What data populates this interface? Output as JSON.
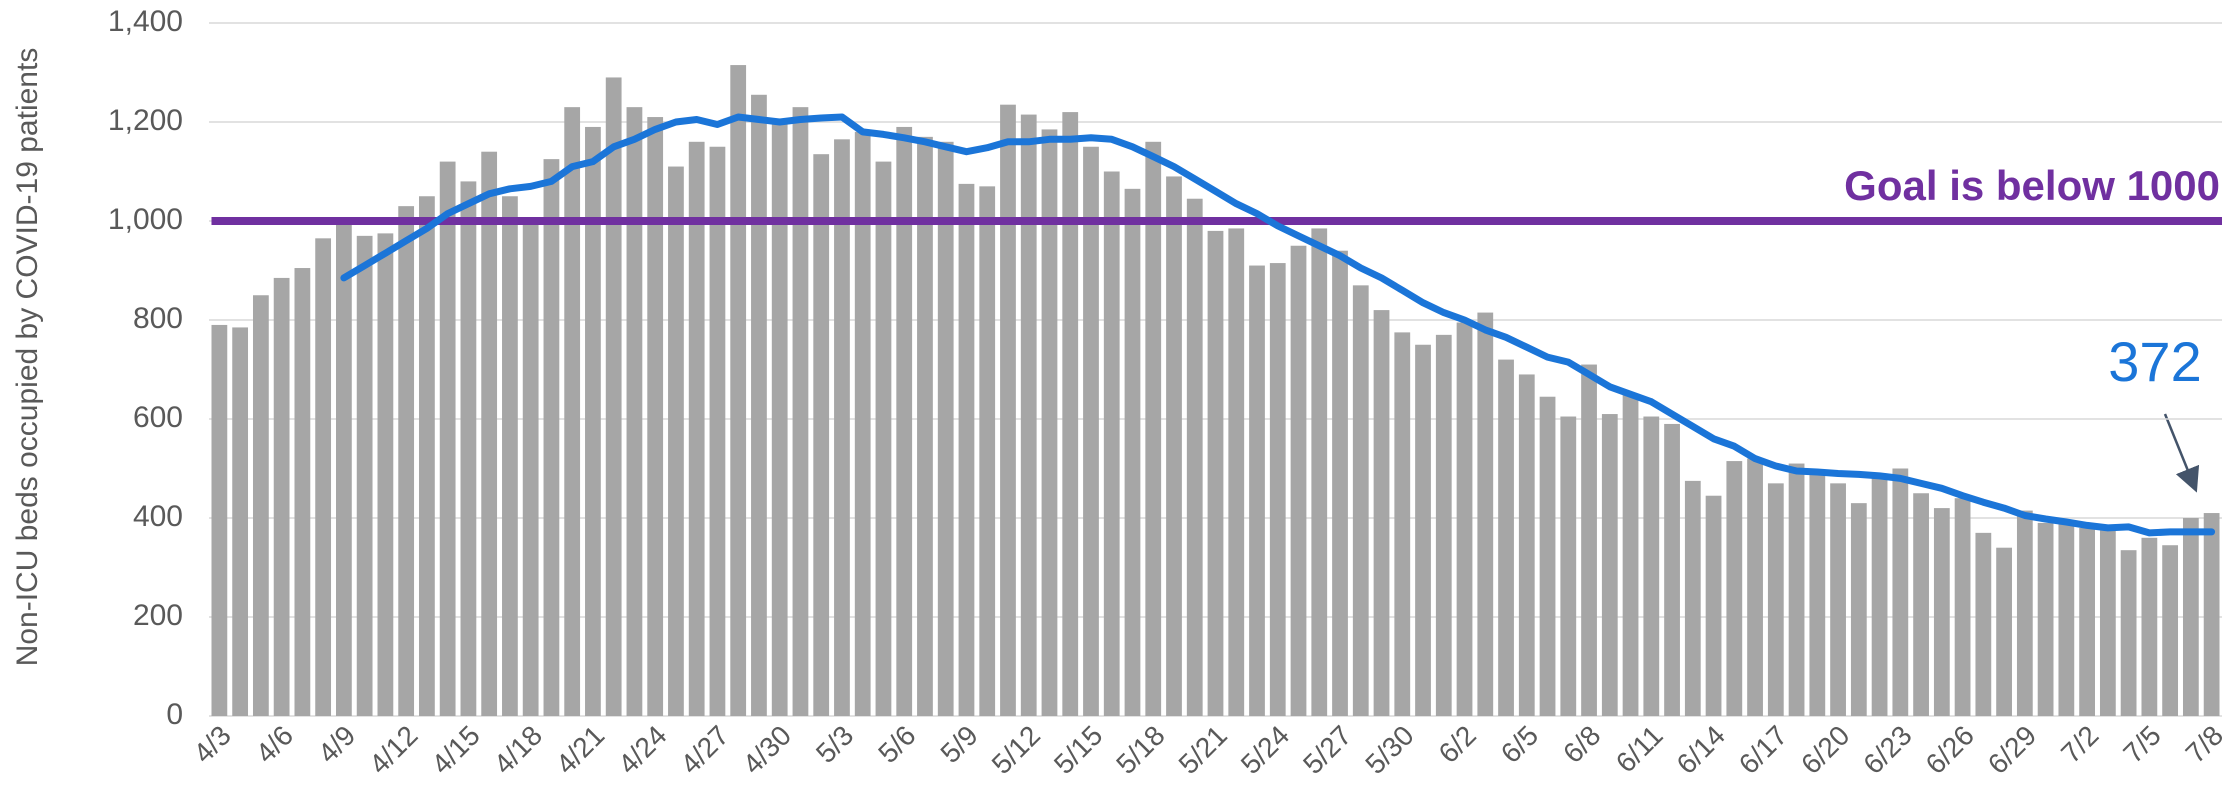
{
  "chart_data": {
    "type": "bar",
    "y_label": "Non-ICU beds occupied by COVID-19 patients",
    "categories": [
      "4/3",
      null,
      null,
      "4/6",
      null,
      null,
      "4/9",
      null,
      null,
      "4/12",
      null,
      null,
      "4/15",
      null,
      null,
      "4/18",
      null,
      null,
      "4/21",
      null,
      null,
      "4/24",
      null,
      null,
      "4/27",
      null,
      null,
      "4/30",
      null,
      null,
      "5/3",
      null,
      null,
      "5/6",
      null,
      null,
      "5/9",
      null,
      null,
      "5/12",
      null,
      null,
      "5/15",
      null,
      null,
      "5/18",
      null,
      null,
      "5/21",
      null,
      null,
      "5/24",
      null,
      null,
      "5/27",
      null,
      null,
      "5/30",
      null,
      null,
      "6/2",
      null,
      null,
      "6/5",
      null,
      null,
      "6/8",
      null,
      null,
      "6/11",
      null,
      null,
      "6/14",
      null,
      null,
      "6/17",
      null,
      null,
      "6/20",
      null,
      null,
      "6/23",
      null,
      null,
      "6/26",
      null,
      null,
      "6/29",
      null,
      null,
      "7/2",
      null,
      null,
      "7/5",
      null,
      null,
      "7/8"
    ],
    "series": [
      {
        "type": "bar",
        "color": "#a6a6a6",
        "values": [
          790,
          785,
          850,
          885,
          905,
          965,
          1000,
          970,
          975,
          1030,
          1050,
          1120,
          1080,
          1140,
          1050,
          1000,
          1125,
          1230,
          1190,
          1290,
          1230,
          1210,
          1110,
          1160,
          1150,
          1315,
          1255,
          1200,
          1230,
          1135,
          1165,
          1180,
          1120,
          1190,
          1170,
          1160,
          1075,
          1070,
          1235,
          1215,
          1185,
          1220,
          1150,
          1100,
          1065,
          1160,
          1090,
          1045,
          980,
          985,
          910,
          915,
          950,
          985,
          940,
          870,
          820,
          775,
          750,
          770,
          795,
          815,
          720,
          690,
          645,
          605,
          710,
          610,
          650,
          605,
          590,
          475,
          445,
          515,
          520,
          470,
          510,
          495,
          470,
          430,
          490,
          500,
          450,
          420,
          440,
          370,
          340,
          415,
          390,
          395,
          380,
          385,
          335,
          360,
          345,
          400,
          410
        ]
      },
      {
        "type": "line",
        "color": "#1b75d8",
        "values": [
          null,
          null,
          null,
          null,
          null,
          null,
          885,
          910,
          935,
          960,
          985,
          1015,
          1035,
          1055,
          1065,
          1070,
          1080,
          1110,
          1120,
          1150,
          1165,
          1185,
          1200,
          1205,
          1195,
          1210,
          1205,
          1200,
          1205,
          1208,
          1210,
          1180,
          1175,
          1168,
          1160,
          1150,
          1140,
          1148,
          1160,
          1160,
          1165,
          1165,
          1168,
          1165,
          1150,
          1130,
          1110,
          1085,
          1060,
          1035,
          1015,
          990,
          970,
          950,
          930,
          905,
          885,
          860,
          835,
          815,
          800,
          780,
          765,
          745,
          725,
          715,
          690,
          665,
          650,
          635,
          610,
          585,
          560,
          545,
          520,
          505,
          495,
          493,
          490,
          488,
          485,
          480,
          470,
          460,
          445,
          432,
          420,
          405,
          398,
          392,
          385,
          380,
          382,
          370,
          372,
          372,
          372
        ]
      }
    ],
    "reference_line": {
      "value": 1000,
      "color": "#7030a0",
      "label": "Goal is below 1000"
    },
    "ylim": [
      0,
      1400
    ],
    "yticks": [
      0,
      200,
      400,
      600,
      800,
      {
        "value": 1000,
        "label": "1,000"
      },
      {
        "value": 1200,
        "label": "1,200"
      },
      {
        "value": 1400,
        "label": "1,400"
      }
    ],
    "grid": true
  }
}
